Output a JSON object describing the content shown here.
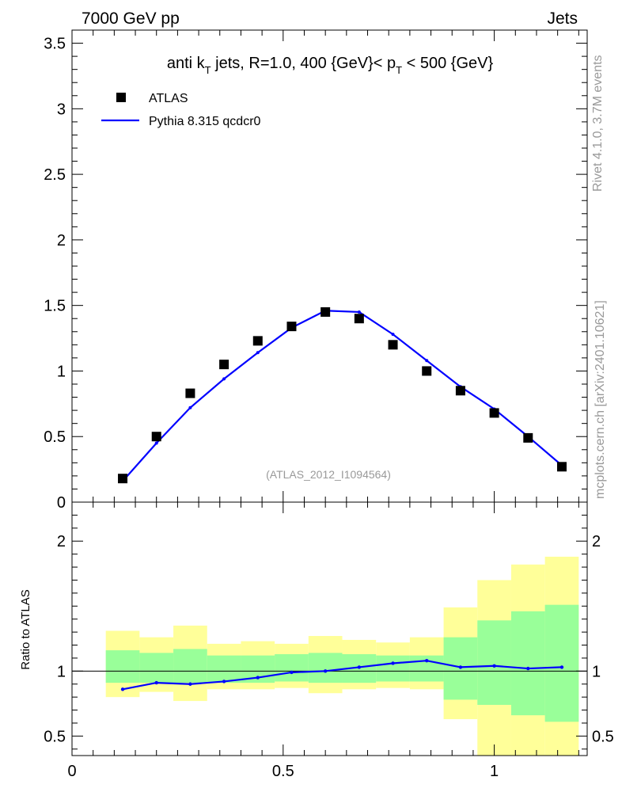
{
  "header": {
    "energy_label": "7000 GeV pp",
    "category_label": "Jets",
    "rivet_label": "Rivet 4.1.0,  3.7M events",
    "source_label": "mcplots.cern.ch [arXiv:2401.10621]",
    "analysis_label": "(ATLAS_2012_I1094564)"
  },
  "chart_data": [
    {
      "type": "scatter",
      "title_parts": {
        "a": "anti k",
        "b": "T",
        "c": " jets, R=1.0,  400 {GeV}< p",
        "d": "T",
        "e": " < 500 {GeV}"
      },
      "xlim": [
        0,
        1.22
      ],
      "ylim": [
        0,
        3.6
      ],
      "ytick_labels": [
        "0",
        "0.5",
        "1",
        "1.5",
        "2",
        "2.5",
        "3",
        "3.5"
      ],
      "ytick_values": [
        0,
        0.5,
        1,
        1.5,
        2,
        2.5,
        3,
        3.5
      ],
      "legend": {
        "position": "top-left",
        "data_label": "ATLAS",
        "mc_label": "Pythia 8.315 qcdcr0"
      },
      "data_series": {
        "name": "ATLAS",
        "x": [
          0.12,
          0.2,
          0.28,
          0.36,
          0.44,
          0.52,
          0.6,
          0.68,
          0.76,
          0.84,
          0.92,
          1.0,
          1.08,
          1.16
        ],
        "y": [
          0.18,
          0.5,
          0.83,
          1.05,
          1.23,
          1.34,
          1.45,
          1.4,
          1.2,
          1.0,
          0.85,
          0.68,
          0.49,
          0.27
        ]
      },
      "mc_series": {
        "name": "Pythia 8.315 qcdcr0",
        "color": "#0000ff",
        "x": [
          0.12,
          0.2,
          0.28,
          0.36,
          0.44,
          0.52,
          0.6,
          0.68,
          0.76,
          0.84,
          0.92,
          1.0,
          1.08,
          1.16
        ],
        "y": [
          0.16,
          0.45,
          0.72,
          0.94,
          1.14,
          1.33,
          1.46,
          1.45,
          1.28,
          1.08,
          0.88,
          0.71,
          0.5,
          0.28
        ]
      }
    },
    {
      "type": "line",
      "ylabel": "Ratio to ATLAS",
      "xlim": [
        0,
        1.22
      ],
      "ylim": [
        0.35,
        2.3
      ],
      "xtick_labels": [
        "0",
        "0.5",
        "1"
      ],
      "xtick_values": [
        0,
        0.5,
        1
      ],
      "ytick_labels": [
        "0.5",
        "1",
        "2"
      ],
      "ytick_values": [
        0.5,
        1,
        2
      ],
      "band_colors": {
        "outer": "#ffff99",
        "inner": "#99ff99"
      },
      "bins": [
        {
          "lo": 0.08,
          "hi": 0.16,
          "y1lo": 0.8,
          "y1hi": 1.31,
          "y2lo": 0.91,
          "y2hi": 1.16
        },
        {
          "lo": 0.16,
          "hi": 0.24,
          "y1lo": 0.84,
          "y1hi": 1.26,
          "y2lo": 0.91,
          "y2hi": 1.14
        },
        {
          "lo": 0.24,
          "hi": 0.32,
          "y1lo": 0.77,
          "y1hi": 1.35,
          "y2lo": 0.91,
          "y2hi": 1.17
        },
        {
          "lo": 0.32,
          "hi": 0.4,
          "y1lo": 0.86,
          "y1hi": 1.21,
          "y2lo": 0.91,
          "y2hi": 1.12
        },
        {
          "lo": 0.4,
          "hi": 0.48,
          "y1lo": 0.86,
          "y1hi": 1.23,
          "y2lo": 0.91,
          "y2hi": 1.12
        },
        {
          "lo": 0.48,
          "hi": 0.56,
          "y1lo": 0.87,
          "y1hi": 1.21,
          "y2lo": 0.92,
          "y2hi": 1.13
        },
        {
          "lo": 0.56,
          "hi": 0.64,
          "y1lo": 0.83,
          "y1hi": 1.27,
          "y2lo": 0.91,
          "y2hi": 1.14
        },
        {
          "lo": 0.64,
          "hi": 0.72,
          "y1lo": 0.86,
          "y1hi": 1.24,
          "y2lo": 0.91,
          "y2hi": 1.13
        },
        {
          "lo": 0.72,
          "hi": 0.8,
          "y1lo": 0.87,
          "y1hi": 1.22,
          "y2lo": 0.92,
          "y2hi": 1.12
        },
        {
          "lo": 0.8,
          "hi": 0.88,
          "y1lo": 0.86,
          "y1hi": 1.26,
          "y2lo": 0.92,
          "y2hi": 1.12
        },
        {
          "lo": 0.88,
          "hi": 0.96,
          "y1lo": 0.63,
          "y1hi": 1.49,
          "y2lo": 0.78,
          "y2hi": 1.26
        },
        {
          "lo": 0.96,
          "hi": 1.04,
          "y1lo": 0.35,
          "y1hi": 1.7,
          "y2lo": 0.74,
          "y2hi": 1.39
        },
        {
          "lo": 1.04,
          "hi": 1.12,
          "y1lo": 0.35,
          "y1hi": 1.82,
          "y2lo": 0.66,
          "y2hi": 1.46
        },
        {
          "lo": 1.12,
          "hi": 1.2,
          "y1lo": 0.35,
          "y1hi": 1.88,
          "y2lo": 0.61,
          "y2hi": 1.51
        }
      ],
      "ratio_series": {
        "x": [
          0.12,
          0.2,
          0.28,
          0.36,
          0.44,
          0.52,
          0.6,
          0.68,
          0.76,
          0.84,
          0.92,
          1.0,
          1.08,
          1.16
        ],
        "y": [
          0.86,
          0.91,
          0.9,
          0.92,
          0.95,
          0.99,
          1.0,
          1.03,
          1.06,
          1.08,
          1.03,
          1.04,
          1.02,
          1.03
        ]
      }
    }
  ]
}
